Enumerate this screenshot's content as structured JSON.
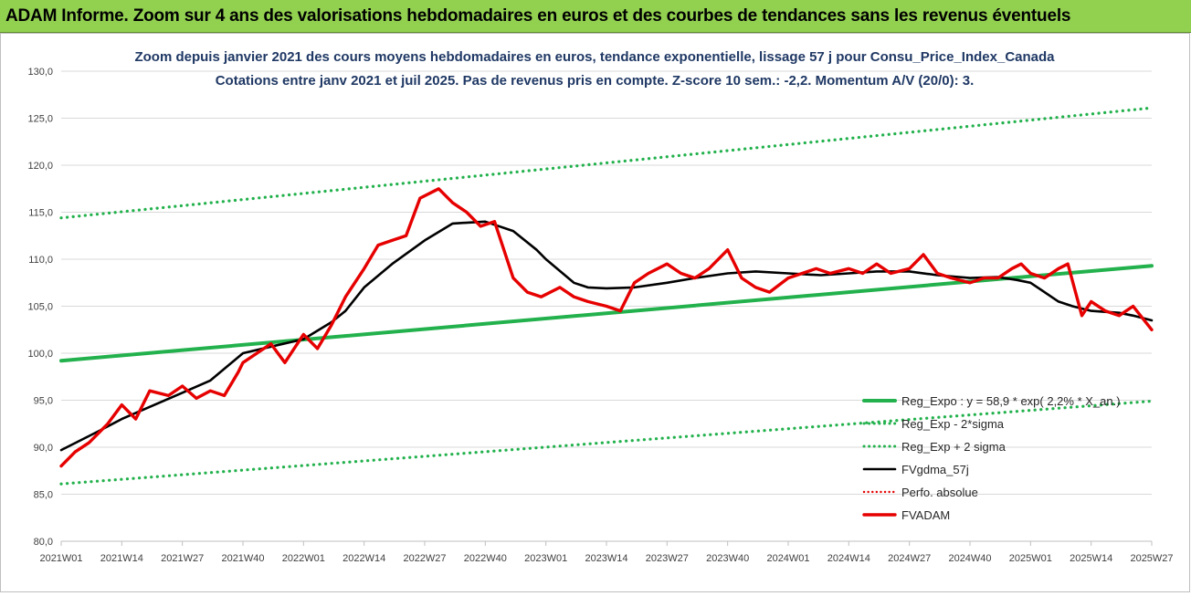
{
  "banner": {
    "title": "ADAM Informe. Zoom sur 4 ans des valorisations hebdomadaires en euros et des courbes de tendances sans les revenus éventuels"
  },
  "colors": {
    "banner_bg": "#92d050",
    "trend_green": "#22b14c",
    "series_red": "#e60000",
    "average_black": "#000000"
  },
  "chart_data": {
    "type": "line",
    "title": "Zoom depuis janvier 2021 des cours moyens hebdomadaires en euros, tendance exponentielle, lissage 57 j pour Consu_Price_Index_Canada",
    "subtitle": "Cotations entre janv 2021 et juil 2025. Pas de revenus pris en compte. Z-score 10 sem.: -2,2. Momentum A/V (20/0): 3.",
    "ylim": [
      80,
      130
    ],
    "yticks": [
      "80,0",
      "85,0",
      "90,0",
      "95,0",
      "100,0",
      "105,0",
      "110,0",
      "115,0",
      "120,0",
      "125,0",
      "130,0"
    ],
    "x_tick_labels": [
      "2021W01",
      "2021W14",
      "2021W27",
      "2021W40",
      "2022W01",
      "2022W14",
      "2022W27",
      "2022W40",
      "2023W01",
      "2023W14",
      "2023W27",
      "2023W40",
      "2024W01",
      "2024W14",
      "2024W27",
      "2024W40",
      "2025W01",
      "2025W14",
      "2025W27"
    ],
    "x_range_weeks": [
      0,
      234
    ],
    "grid": "horizontal",
    "legend_position": "bottom-right",
    "legend": [
      "Reg_Expo : y = 58,9 * exp( 2,2% * X_an.)",
      "Reg_Exp - 2*sigma",
      "Reg_Exp + 2 sigma",
      "FVgdma_57j",
      "Perfo. absolue",
      "FVADAM"
    ],
    "series": [
      {
        "name": "Reg_Expo : y = 58,9 * exp( 2,2% * X_an.)",
        "style": "solid-thick-green",
        "x": [
          0,
          234
        ],
        "values": [
          99.2,
          109.3
        ]
      },
      {
        "name": "Reg_Exp - 2*sigma",
        "style": "dotted-green",
        "x": [
          0,
          234
        ],
        "values": [
          86.1,
          94.9
        ]
      },
      {
        "name": "Reg_Exp + 2 sigma",
        "style": "dotted-green",
        "x": [
          0,
          234
        ],
        "values": [
          114.4,
          126.1
        ]
      },
      {
        "name": "FVgdma_57j",
        "style": "solid-black",
        "x": [
          0,
          8,
          13,
          26,
          32,
          39,
          45,
          52,
          58,
          61,
          65,
          71,
          78,
          84,
          91,
          97,
          102,
          104,
          110,
          113,
          117,
          123,
          130,
          136,
          143,
          149,
          156,
          163,
          169,
          175,
          182,
          188,
          195,
          201,
          205,
          208,
          211,
          214,
          217,
          221,
          224,
          227,
          230,
          234
        ],
        "values": [
          89.7,
          91.7,
          93.0,
          95.8,
          97.1,
          100.0,
          100.7,
          101.5,
          103.3,
          104.5,
          107.0,
          109.5,
          112.0,
          113.8,
          114.0,
          113.0,
          111.0,
          110.0,
          107.5,
          107.0,
          106.9,
          107.0,
          107.5,
          108.0,
          108.5,
          108.7,
          108.5,
          108.3,
          108.5,
          108.7,
          108.7,
          108.3,
          108.0,
          108.1,
          107.8,
          107.5,
          106.5,
          105.5,
          105.0,
          104.5,
          104.4,
          104.3,
          104.0,
          103.5
        ]
      },
      {
        "name": "FVADAM",
        "style": "solid-thick-red",
        "x": [
          0,
          3,
          6,
          10,
          13,
          16,
          19,
          23,
          26,
          29,
          32,
          35,
          38,
          39,
          42,
          45,
          48,
          52,
          55,
          58,
          61,
          65,
          68,
          71,
          74,
          77,
          81,
          84,
          87,
          90,
          93,
          97,
          100,
          103,
          107,
          110,
          113,
          117,
          120,
          123,
          126,
          130,
          133,
          136,
          139,
          143,
          146,
          149,
          152,
          156,
          159,
          162,
          165,
          169,
          172,
          175,
          178,
          182,
          185,
          188,
          191,
          195,
          198,
          201,
          204,
          206,
          208,
          211,
          214,
          216,
          219,
          221,
          224,
          227,
          230,
          234
        ],
        "values": [
          88.0,
          89.5,
          90.5,
          92.5,
          94.5,
          93.0,
          96.0,
          95.5,
          96.5,
          95.2,
          96.0,
          95.5,
          98.0,
          99.0,
          100.0,
          101.0,
          99.0,
          102.0,
          100.5,
          103.0,
          106.0,
          109.0,
          111.5,
          112.0,
          112.5,
          116.5,
          117.5,
          116.0,
          115.0,
          113.5,
          114.0,
          108.0,
          106.5,
          106.0,
          107.0,
          106.0,
          105.5,
          105.0,
          104.5,
          107.5,
          108.5,
          109.5,
          108.5,
          108.0,
          109.0,
          111.0,
          108.0,
          107.0,
          106.5,
          108.0,
          108.5,
          109.0,
          108.5,
          109.0,
          108.5,
          109.5,
          108.5,
          109.0,
          110.5,
          108.5,
          108.0,
          107.5,
          108.0,
          108.0,
          109.0,
          109.5,
          108.5,
          108.0,
          109.0,
          109.5,
          104.0,
          105.5,
          104.5,
          104.0,
          105.0,
          102.5
        ]
      }
    ]
  }
}
